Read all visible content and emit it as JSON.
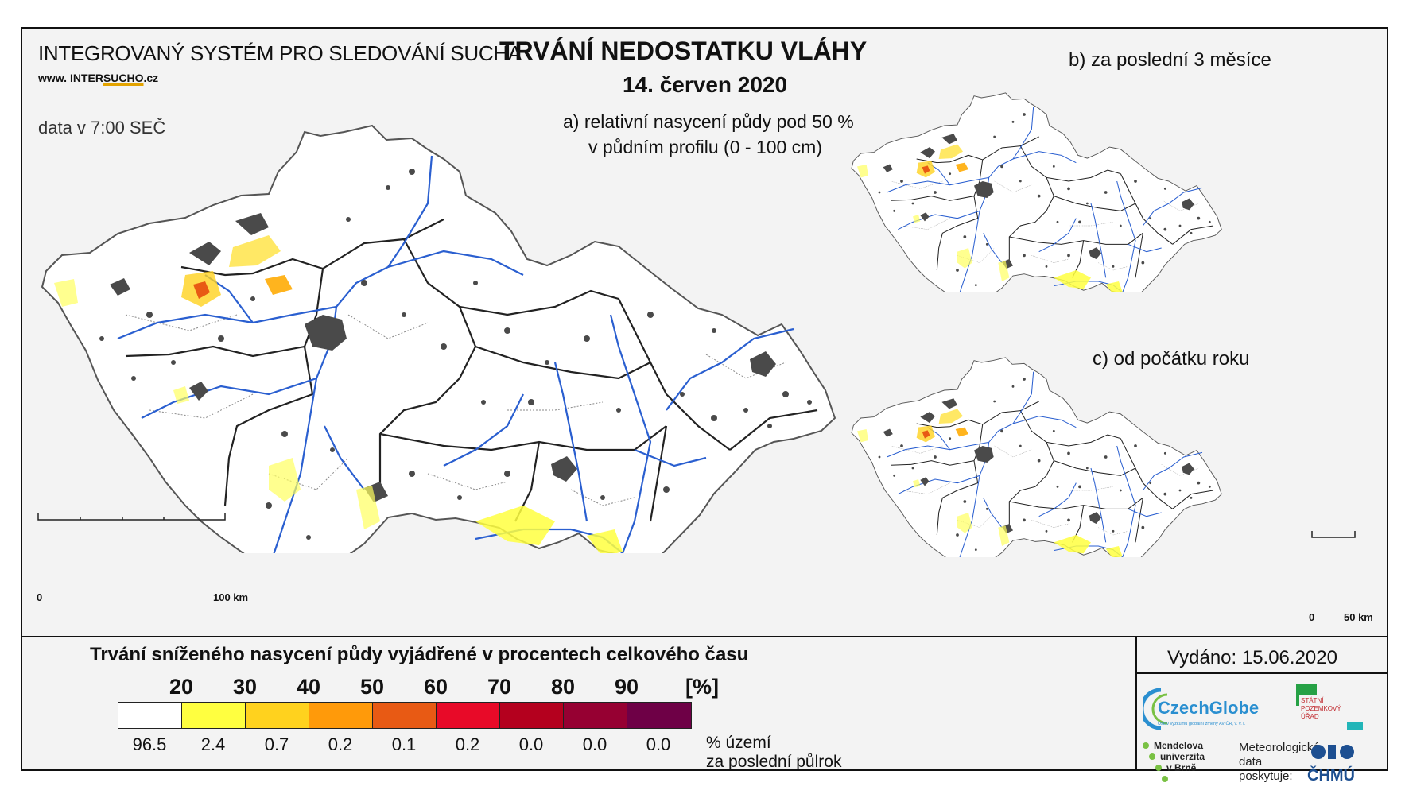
{
  "header": {
    "org_title": "INTEGROVANÝ SYSTÉM PRO SLEDOVÁNÍ SUCHA",
    "website_prefix": "www.",
    "website_inter": "INTER",
    "website_sucho": "SUCHO",
    "website_suffix": ".cz",
    "data_time": "data v 7:00 SEČ",
    "main_title": "TRVÁNÍ NEDOSTATKU VLÁHY",
    "main_date": "14. červen 2020"
  },
  "panels": {
    "a_line1": "a) relativní nasycení půdy pod 50 %",
    "a_line2": "v půdním profilu (0 - 100 cm)",
    "b_title": "b) za poslední 3 měsíce",
    "c_title": "c) od počátku roku"
  },
  "scale_bars": {
    "big_start": "0",
    "big_end": "100 km",
    "small_start": "0",
    "small_end": "50 km"
  },
  "legend": {
    "title": "Trvání sníženého nasycení půdy vyjádřené v procentech celkového času",
    "thresholds": [
      "20",
      "30",
      "40",
      "50",
      "60",
      "70",
      "80",
      "90"
    ],
    "unit": "[%]",
    "colors": [
      "#ffffff",
      "#ffff40",
      "#ffd21e",
      "#ff9a0a",
      "#e85a14",
      "#e80a28",
      "#b4001e",
      "#960032",
      "#6e0046"
    ],
    "percent_values": [
      "96.5",
      "2.4",
      "0.7",
      "0.2",
      "0.1",
      "0.2",
      "0.0",
      "0.0",
      "0.0"
    ],
    "percent_note_line1": "% území",
    "percent_note_line2": "za poslední půlrok"
  },
  "footer": {
    "issued": "Vydáno: 15.06.2020",
    "czechglobe": "CzechGlobe",
    "czechglobe_sub": "Ústav výzkumu globální změny AV ČR, v. v. i.",
    "spu_lines": [
      "STÁTNÍ",
      "POZEMKOVÝ",
      "ÚŘAD"
    ],
    "mendel_lines": [
      "Mendelova",
      "univerzita",
      "v Brně"
    ],
    "met_note": "Meteorologická data poskytuje:",
    "chmu": "ČHMÚ"
  }
}
